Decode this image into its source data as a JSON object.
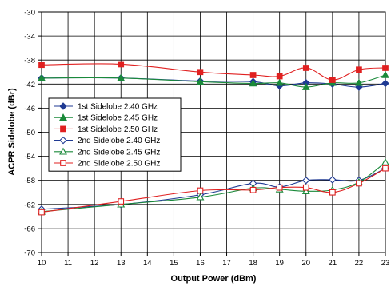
{
  "chart_data": {
    "type": "line",
    "title": "",
    "xlabel": "Output Power (dBm)",
    "ylabel": "ACPR Sidelobe (dBr)",
    "xlim": [
      10,
      23
    ],
    "ylim": [
      -70,
      -30
    ],
    "x_ticks": [
      10,
      11,
      12,
      13,
      14,
      15,
      16,
      17,
      18,
      19,
      20,
      21,
      22,
      23
    ],
    "y_ticks": [
      -30,
      -34,
      -38,
      -42,
      -46,
      -50,
      -54,
      -58,
      -62,
      -66,
      -70
    ],
    "grid": true,
    "legend_position": "left-middle",
    "series": [
      {
        "name": "1st Sidelobe 2.40 GHz",
        "color": "#1f3a93",
        "marker": "diamond",
        "filled": true,
        "x": [
          10,
          13,
          16,
          18,
          19,
          20,
          21,
          22,
          23
        ],
        "y": [
          -41.0,
          -41.0,
          -41.5,
          -41.6,
          -42.3,
          -41.8,
          -42.0,
          -42.5,
          -41.9
        ]
      },
      {
        "name": "1st Sidelobe 2.45 GHz",
        "color": "#1a8a3a",
        "marker": "triangle",
        "filled": true,
        "x": [
          10,
          13,
          16,
          18,
          19,
          20,
          21,
          22,
          23
        ],
        "y": [
          -41.0,
          -41.0,
          -41.6,
          -41.9,
          -41.8,
          -42.5,
          -41.8,
          -41.8,
          -40.5
        ]
      },
      {
        "name": "1st Sidelobe 2.50 GHz",
        "color": "#e02020",
        "marker": "square",
        "filled": true,
        "x": [
          10,
          13,
          16,
          18,
          19,
          20,
          21,
          22,
          23
        ],
        "y": [
          -38.8,
          -38.7,
          -40.0,
          -40.5,
          -40.7,
          -39.3,
          -41.3,
          -39.6,
          -39.3
        ]
      },
      {
        "name": "2nd Sidelobe 2.40 GHz",
        "color": "#1f3a93",
        "marker": "diamond",
        "filled": false,
        "x": [
          10,
          13,
          16,
          18,
          19,
          20,
          21,
          22,
          23
        ],
        "y": [
          -62.8,
          -62.0,
          -60.4,
          -58.5,
          -59.1,
          -58.0,
          -57.9,
          -58.0,
          -56.0
        ]
      },
      {
        "name": "2nd Sidelobe 2.45 GHz",
        "color": "#1a8a3a",
        "marker": "triangle",
        "filled": false,
        "x": [
          10,
          13,
          16,
          18,
          19,
          20,
          21,
          22,
          23
        ],
        "y": [
          -63.2,
          -62.0,
          -60.8,
          -59.3,
          -59.5,
          -59.8,
          -59.6,
          -58.3,
          -55.0
        ]
      },
      {
        "name": "2nd Sidelobe 2.50 GHz",
        "color": "#e02020",
        "marker": "square",
        "filled": false,
        "x": [
          10,
          13,
          16,
          18,
          19,
          20,
          21,
          22,
          23
        ],
        "y": [
          -63.3,
          -61.5,
          -59.7,
          -59.6,
          -59.2,
          -59.2,
          -60.0,
          -58.5,
          -56.0
        ]
      }
    ]
  }
}
